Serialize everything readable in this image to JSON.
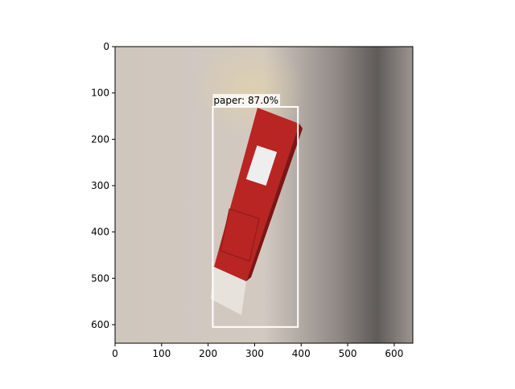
{
  "chart_data": {
    "type": "image",
    "xlim": [
      0,
      640
    ],
    "ylim": [
      640,
      0
    ],
    "xticks": [
      0,
      100,
      200,
      300,
      400,
      500,
      600
    ],
    "yticks": [
      0,
      100,
      200,
      300,
      400,
      500,
      600
    ],
    "boxes": [
      {
        "label": "paper: 87.0%",
        "x1": 210,
        "y1": 130,
        "x2": 393,
        "y2": 605,
        "color": "#ffffff"
      }
    ]
  }
}
